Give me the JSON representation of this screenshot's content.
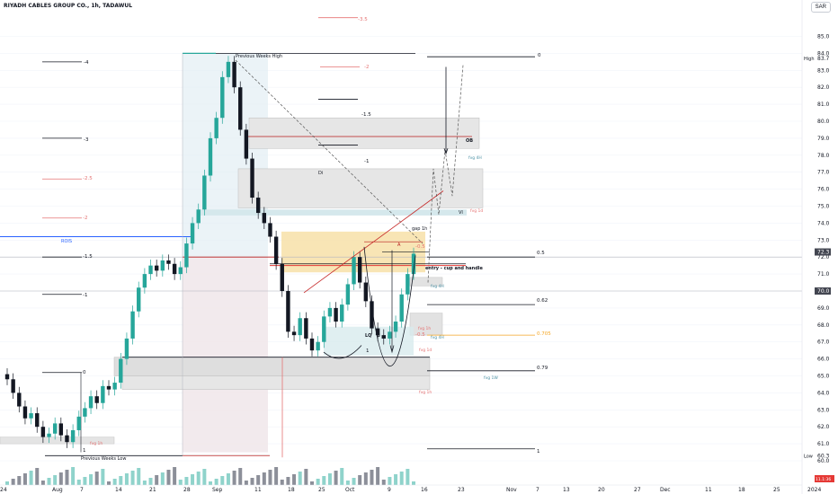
{
  "chart_data": {
    "type": "candlestick",
    "title": "RIYADH CABLES GROUP CO., 1h, TADAWUL",
    "currency": "SAR",
    "ylim": [
      60,
      86
    ],
    "y_ticks": [
      60.0,
      61.0,
      62.0,
      63.0,
      64.0,
      65.0,
      66.0,
      67.0,
      68.0,
      69.0,
      70.0,
      71.0,
      72.0,
      73.0,
      74.0,
      75.0,
      76.0,
      77.0,
      78.0,
      79.0,
      80.0,
      81.0,
      82.0,
      83.0,
      84.0,
      85.0
    ],
    "x_ticks": [
      {
        "label": "24",
        "i": 0
      },
      {
        "label": "Aug",
        "i": 8
      },
      {
        "label": "7",
        "i": 13
      },
      {
        "label": "14",
        "i": 18
      },
      {
        "label": "21",
        "i": 23
      },
      {
        "label": "28",
        "i": 28
      },
      {
        "label": "Sep",
        "i": 33
      },
      {
        "label": "11",
        "i": 40
      },
      {
        "label": "18",
        "i": 45
      },
      {
        "label": "25",
        "i": 50
      },
      {
        "label": "Oct",
        "i": 55
      },
      {
        "label": "9",
        "i": 61
      },
      {
        "label": "16",
        "i": 67
      },
      {
        "label": "23",
        "i": 73
      },
      {
        "label": "Nov",
        "i": 80
      },
      {
        "label": "7",
        "i": 85
      },
      {
        "label": "13",
        "i": 90
      },
      {
        "label": "20",
        "i": 95
      },
      {
        "label": "27",
        "i": 100
      },
      {
        "label": "Dec",
        "i": 105
      },
      {
        "label": "11",
        "i": 111
      },
      {
        "label": "18",
        "i": 117
      },
      {
        "label": "25",
        "i": 123
      },
      {
        "label": "2024",
        "i": 129
      }
    ],
    "close_series": [
      64.8,
      64.0,
      63.2,
      62.5,
      62.8,
      62.0,
      61.4,
      61.6,
      62.2,
      61.5,
      61.1,
      61.8,
      62.6,
      63.1,
      63.8,
      63.4,
      64.4,
      64.2,
      64.6,
      66.0,
      67.2,
      68.8,
      70.2,
      71.0,
      71.5,
      71.2,
      71.8,
      71.6,
      71.0,
      71.4,
      72.8,
      74.0,
      74.8,
      76.8,
      79.0,
      80.2,
      82.6,
      83.5,
      82.0,
      79.5,
      77.8,
      75.5,
      74.6,
      74.0,
      73.2,
      71.6,
      70.0,
      67.6,
      67.4,
      68.4,
      67.2,
      66.5,
      67.0,
      68.5,
      69.0,
      68.2,
      69.2,
      70.4,
      72.0,
      70.5,
      69.4,
      67.8,
      67.4,
      67.2,
      67.6,
      68.2,
      69.8,
      71.0,
      72.2
    ],
    "high_price": "83.7",
    "low_price": "60.3",
    "price_labels": [
      {
        "text": "85.0",
        "y": 85.0
      },
      {
        "text": "84.0",
        "y": 84.0
      },
      {
        "text": "83.7",
        "y": 83.7,
        "tag": "High"
      },
      {
        "text": "72.3",
        "y": 72.3,
        "kind": "dark"
      },
      {
        "text": "70.0",
        "y": 70.0,
        "kind": "dark"
      },
      {
        "text": "60.3",
        "y": 60.3,
        "tag": "Low"
      }
    ],
    "fib_levels": [
      {
        "text": "-4",
        "y": 83.5
      },
      {
        "text": "-3.5",
        "y": 86.1,
        "kind": "red"
      },
      {
        "text": "-3",
        "y": 79.0
      },
      {
        "text": "-2.5",
        "y": 76.6,
        "kind": "red"
      },
      {
        "text": "-2",
        "y": 74.3,
        "kind": "red"
      },
      {
        "text": "-2",
        "y": 83.2,
        "kind": "red"
      },
      {
        "text": "-1.5",
        "y": 72.0
      },
      {
        "text": "-1.5",
        "y": 81.3
      },
      {
        "text": "-1",
        "y": 69.8
      },
      {
        "text": "-1",
        "y": 78.6
      },
      {
        "text": "-0.5",
        "y": 72.7,
        "kind": "red"
      },
      {
        "text": "-0.5",
        "y": 67.3,
        "kind": "red"
      },
      {
        "text": "0",
        "y": 65.2
      },
      {
        "text": "0",
        "y": 84.0
      },
      {
        "text": "0.5",
        "y": 72.1
      },
      {
        "text": "0.62",
        "y": 69.1
      },
      {
        "text": "0.705",
        "y": 67.4,
        "kind": "orange"
      },
      {
        "text": "0.79",
        "y": 65.5
      },
      {
        "text": "1",
        "y": 60.3
      },
      {
        "text": "1",
        "y": 60.7
      },
      {
        "text": "1",
        "y": 66.4
      }
    ],
    "annotations": {
      "previous_weeks_high": "Previous Weeks High",
      "previous_weeks_low": "Previous Weeks Low",
      "rois": "ROIS",
      "ob": "OB",
      "vi": "VI",
      "gap": "gap 1h",
      "a": "A",
      "entry": "entry - cup and handle",
      "lq": "LQ",
      "b": "B",
      "di": "Di",
      "fvg4h_1": "fvg 4H",
      "fvg1d": "fvg 1d",
      "fvg4h_2": "fvg 4H",
      "fvg1h_1": "fvg 1h",
      "fvg4h_3": "fvg 4H",
      "fvg1d_2": "fvg 1d",
      "fvg1w": "fvg 1W",
      "fvg1h_2": "fvg 1h",
      "bottom_price": "11.1:36"
    },
    "colors": {
      "up": "#26a69a",
      "down": "#131722",
      "red": "#e57373",
      "blue": "#2962ff",
      "orange": "#f5a623",
      "grid": "#f0f3fa"
    }
  }
}
